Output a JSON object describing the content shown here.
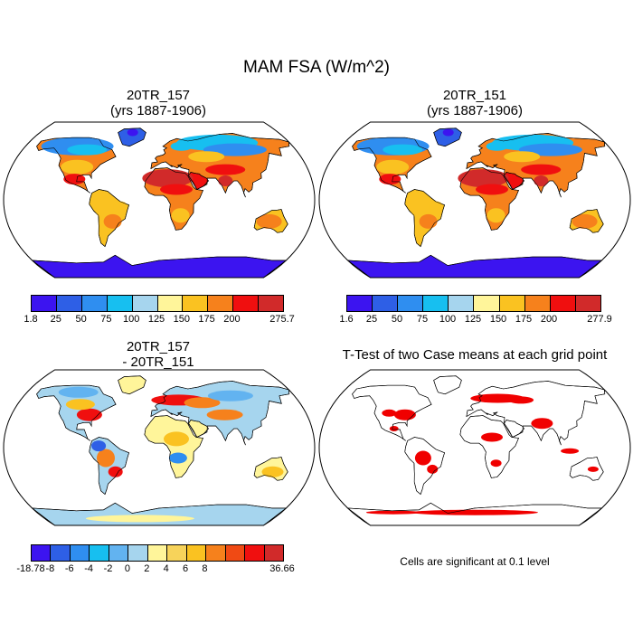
{
  "title": "MAM FSA (W/m^2)",
  "panels": {
    "p1": {
      "title_line1": "20TR_157",
      "title_line2": "(yrs 1887-1906)"
    },
    "p2": {
      "title_line1": "20TR_151",
      "title_line2": "(yrs 1887-1906)"
    },
    "p3": {
      "title_line1": "20TR_157",
      "title_line2": "- 20TR_151"
    },
    "p4": {
      "title": "T-Test of two Case means at each grid point",
      "footnote": "Cells are significant at 0.1 level"
    }
  },
  "colorbars": {
    "cb1": {
      "colors": [
        "#3c14f0",
        "#2e5fe6",
        "#2f8ef0",
        "#17bff0",
        "#a6d5ee",
        "#fff59a",
        "#fac221",
        "#f6811c",
        "#f00f0f",
        "#d12a2a"
      ],
      "labels": [
        "1.8",
        "25",
        "50",
        "75",
        "100",
        "125",
        "150",
        "175",
        "200",
        "275.7"
      ]
    },
    "cb2": {
      "colors": [
        "#3c14f0",
        "#2e5fe6",
        "#2f8ef0",
        "#17bff0",
        "#a6d5ee",
        "#fff59a",
        "#fac221",
        "#f6811c",
        "#f00f0f",
        "#d12a2a"
      ],
      "labels": [
        "1.6",
        "25",
        "50",
        "75",
        "100",
        "125",
        "150",
        "175",
        "200",
        "277.9"
      ]
    },
    "cb3": {
      "colors": [
        "#3c14f0",
        "#2e5fe6",
        "#2f8ef0",
        "#17bff0",
        "#62b3f0",
        "#a6d5ee",
        "#fff59a",
        "#f7d35a",
        "#fac221",
        "#f6811c",
        "#f04a14",
        "#f00f0f",
        "#d12a2a"
      ],
      "labels": [
        "-18.78",
        "-8",
        "-6",
        "-4",
        "-2",
        "0",
        "2",
        "4",
        "6",
        "8",
        "36.66"
      ]
    }
  }
}
